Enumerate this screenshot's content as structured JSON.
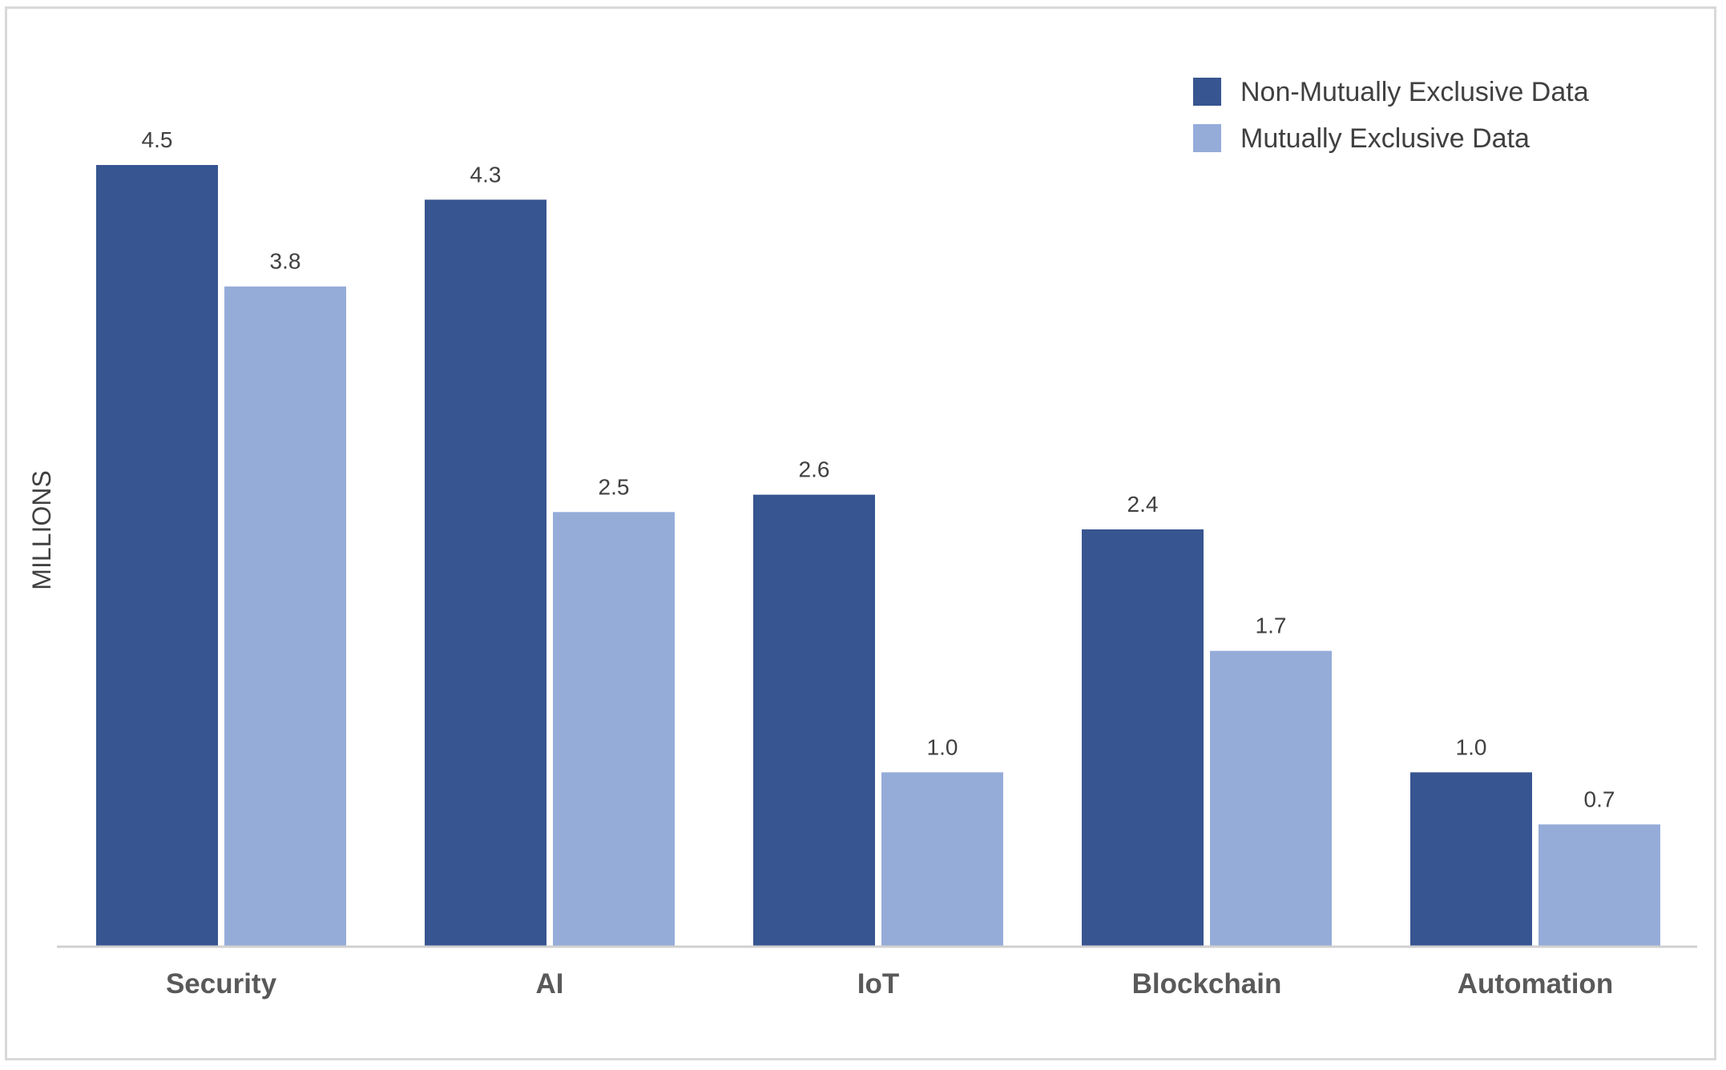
{
  "chart_data": {
    "type": "bar",
    "categories": [
      "Security",
      "AI",
      "IoT",
      "Blockchain",
      "Automation"
    ],
    "series": [
      {
        "name": "Non-Mutually Exclusive Data",
        "values": [
          4.5,
          4.3,
          2.6,
          2.4,
          1.0
        ],
        "labels": [
          "4.5",
          "4.3",
          "2.6",
          "2.4",
          "1.0"
        ],
        "color": "#375590"
      },
      {
        "name": "Mutually Exclusive Data",
        "values": [
          3.8,
          2.5,
          1.0,
          1.7,
          0.7
        ],
        "labels": [
          "3.8",
          "2.5",
          "1.0",
          "1.7",
          "0.7"
        ],
        "color": "#95acd9"
      }
    ],
    "ylabel": "MILLIONS",
    "xlabel": "",
    "ylim": [
      0,
      4.5
    ],
    "grid": false,
    "legend_position": "top-right",
    "baseline_color": "#d0d0d0"
  }
}
